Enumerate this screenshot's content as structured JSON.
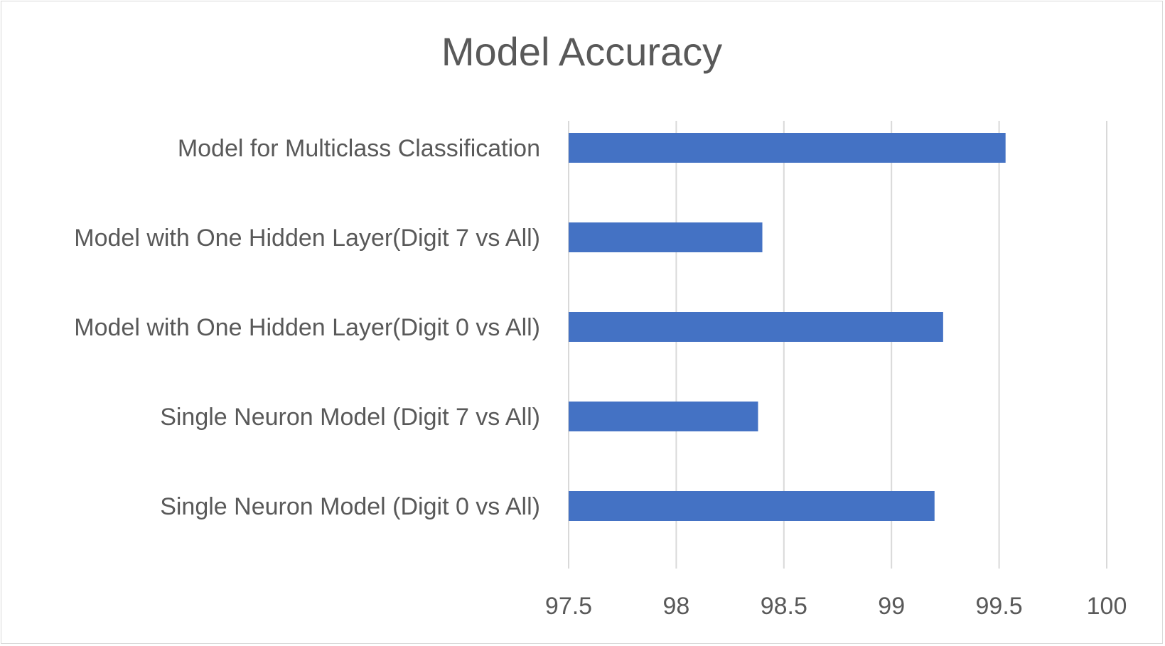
{
  "chart_data": {
    "type": "bar",
    "orientation": "horizontal",
    "title": "Model Accuracy",
    "xlabel": "",
    "ylabel": "",
    "categories": [
      "Model for Multiclass Classification",
      "Model with One Hidden Layer(Digit 7 vs All)",
      "Model with One Hidden Layer(Digit 0 vs All)",
      "Single Neuron Model (Digit 7 vs All)",
      "Single Neuron Model (Digit 0 vs All)"
    ],
    "values": [
      99.53,
      98.4,
      99.24,
      98.38,
      99.2
    ],
    "xlim": [
      97.5,
      100
    ],
    "ticks": [
      "97.5",
      "98",
      "98.5",
      "99",
      "99.5",
      "100"
    ],
    "tick_values": [
      97.5,
      98,
      98.5,
      99,
      99.5,
      100
    ],
    "grid": true,
    "legend": "none",
    "bar_color": "#4472C4",
    "grid_color": "#d9d9d9",
    "text_color": "#595959"
  }
}
